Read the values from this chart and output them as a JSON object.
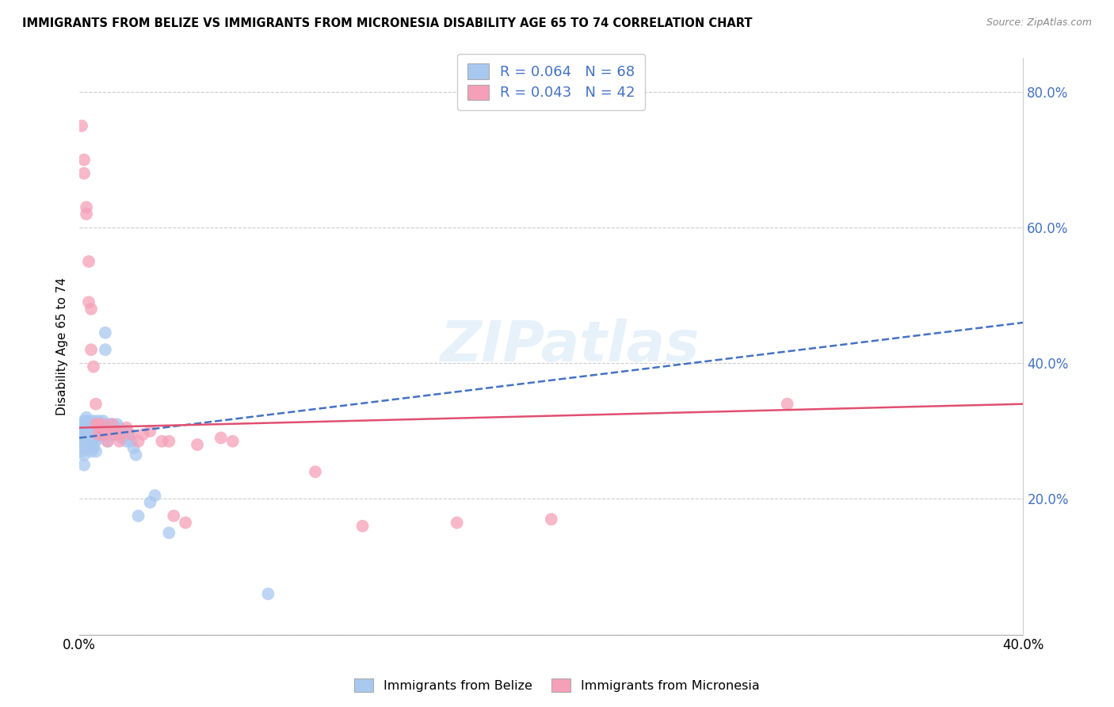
{
  "title": "IMMIGRANTS FROM BELIZE VS IMMIGRANTS FROM MICRONESIA DISABILITY AGE 65 TO 74 CORRELATION CHART",
  "source": "Source: ZipAtlas.com",
  "ylabel": "Disability Age 65 to 74",
  "x_min": 0.0,
  "x_max": 0.4,
  "y_min": 0.0,
  "y_max": 0.85,
  "x_ticks": [
    0.0,
    0.05,
    0.1,
    0.15,
    0.2,
    0.25,
    0.3,
    0.35,
    0.4
  ],
  "y_ticks_right": [
    0.0,
    0.2,
    0.4,
    0.6,
    0.8
  ],
  "y_tick_labels_right": [
    "",
    "20.0%",
    "40.0%",
    "60.0%",
    "80.0%"
  ],
  "belize_color": "#a8c8f0",
  "micronesia_color": "#f5a0b8",
  "belize_line_color": "#4472c4",
  "micronesia_line_color": "#e05070",
  "belize_R": 0.064,
  "belize_N": 68,
  "micronesia_R": 0.043,
  "micronesia_N": 42,
  "legend_text_color": "#4472c4",
  "belize_line_x0": 0.0,
  "belize_line_y0": 0.29,
  "belize_line_x1": 0.4,
  "belize_line_y1": 0.46,
  "micronesia_line_x0": 0.0,
  "micronesia_line_y0": 0.305,
  "micronesia_line_x1": 0.4,
  "micronesia_line_y1": 0.34,
  "belize_scatter_x": [
    0.001,
    0.001,
    0.001,
    0.001,
    0.001,
    0.002,
    0.002,
    0.002,
    0.002,
    0.002,
    0.002,
    0.003,
    0.003,
    0.003,
    0.003,
    0.003,
    0.003,
    0.004,
    0.004,
    0.004,
    0.004,
    0.005,
    0.005,
    0.005,
    0.005,
    0.005,
    0.006,
    0.006,
    0.006,
    0.006,
    0.007,
    0.007,
    0.007,
    0.007,
    0.008,
    0.008,
    0.008,
    0.009,
    0.009,
    0.01,
    0.01,
    0.01,
    0.011,
    0.011,
    0.012,
    0.012,
    0.012,
    0.013,
    0.013,
    0.014,
    0.014,
    0.015,
    0.016,
    0.016,
    0.017,
    0.018,
    0.019,
    0.02,
    0.02,
    0.021,
    0.022,
    0.023,
    0.024,
    0.025,
    0.03,
    0.032,
    0.038,
    0.08
  ],
  "belize_scatter_y": [
    0.295,
    0.31,
    0.3,
    0.285,
    0.27,
    0.305,
    0.315,
    0.295,
    0.28,
    0.265,
    0.25,
    0.31,
    0.3,
    0.29,
    0.275,
    0.32,
    0.295,
    0.305,
    0.295,
    0.28,
    0.315,
    0.31,
    0.3,
    0.285,
    0.27,
    0.295,
    0.315,
    0.305,
    0.29,
    0.275,
    0.31,
    0.3,
    0.285,
    0.27,
    0.315,
    0.305,
    0.29,
    0.31,
    0.295,
    0.315,
    0.305,
    0.295,
    0.42,
    0.445,
    0.31,
    0.3,
    0.285,
    0.31,
    0.295,
    0.31,
    0.295,
    0.305,
    0.31,
    0.295,
    0.305,
    0.29,
    0.295,
    0.3,
    0.285,
    0.295,
    0.285,
    0.275,
    0.265,
    0.175,
    0.195,
    0.205,
    0.15,
    0.06
  ],
  "micronesia_scatter_x": [
    0.001,
    0.002,
    0.002,
    0.003,
    0.003,
    0.004,
    0.004,
    0.005,
    0.005,
    0.006,
    0.007,
    0.007,
    0.008,
    0.008,
    0.009,
    0.01,
    0.01,
    0.011,
    0.012,
    0.013,
    0.014,
    0.015,
    0.016,
    0.017,
    0.018,
    0.02,
    0.022,
    0.025,
    0.027,
    0.03,
    0.035,
    0.038,
    0.04,
    0.045,
    0.05,
    0.06,
    0.065,
    0.1,
    0.12,
    0.16,
    0.2,
    0.3
  ],
  "micronesia_scatter_y": [
    0.75,
    0.7,
    0.68,
    0.63,
    0.62,
    0.55,
    0.49,
    0.42,
    0.48,
    0.395,
    0.34,
    0.31,
    0.295,
    0.31,
    0.305,
    0.295,
    0.31,
    0.3,
    0.285,
    0.3,
    0.31,
    0.295,
    0.3,
    0.285,
    0.295,
    0.305,
    0.295,
    0.285,
    0.295,
    0.3,
    0.285,
    0.285,
    0.175,
    0.165,
    0.28,
    0.29,
    0.285,
    0.24,
    0.16,
    0.165,
    0.17,
    0.34
  ]
}
